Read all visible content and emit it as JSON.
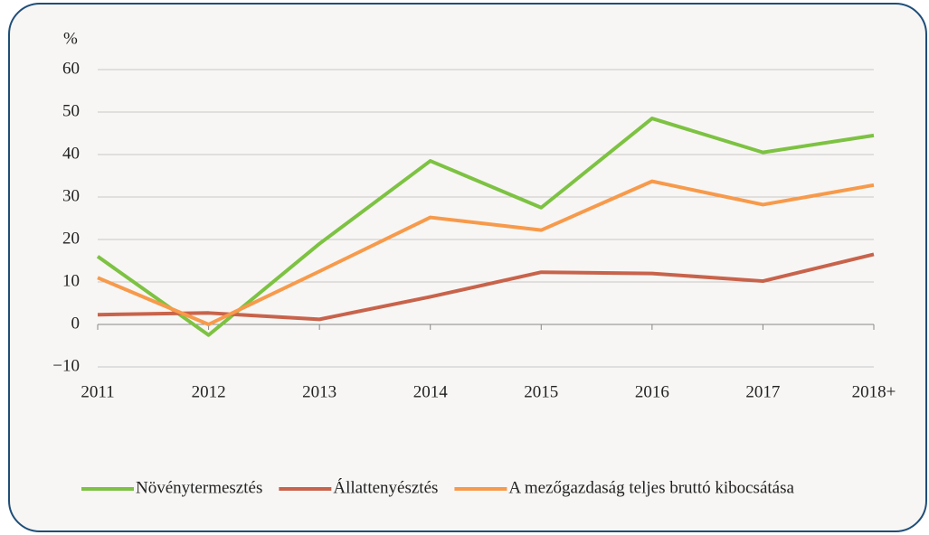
{
  "chart_data": {
    "type": "line",
    "y_axis_label": "%",
    "categories": [
      "2011",
      "2012",
      "2013",
      "2014",
      "2015",
      "2016",
      "2017",
      "2018+"
    ],
    "series": [
      {
        "name": "Növénytermesztés",
        "color": "#7dc242",
        "values": [
          16,
          -2.5,
          19,
          38.5,
          27.5,
          48.5,
          40.5,
          44.5
        ]
      },
      {
        "name": "Állattenyésztés",
        "color": "#c8634b",
        "values": [
          2.3,
          2.7,
          1.2,
          6.5,
          12.3,
          12,
          10.2,
          16.5
        ]
      },
      {
        "name": "A mezőgazdaság teljes bruttó kibocsátása",
        "color": "#f79a4b",
        "values": [
          11,
          0,
          12.5,
          25.2,
          22.2,
          33.7,
          28.2,
          32.8
        ]
      }
    ],
    "ylim": [
      -10,
      60
    ],
    "yticks": [
      {
        "value": -10,
        "label": "−10"
      },
      0,
      10,
      20,
      30,
      40,
      50,
      60
    ],
    "grid": true,
    "legend": "bottom"
  }
}
